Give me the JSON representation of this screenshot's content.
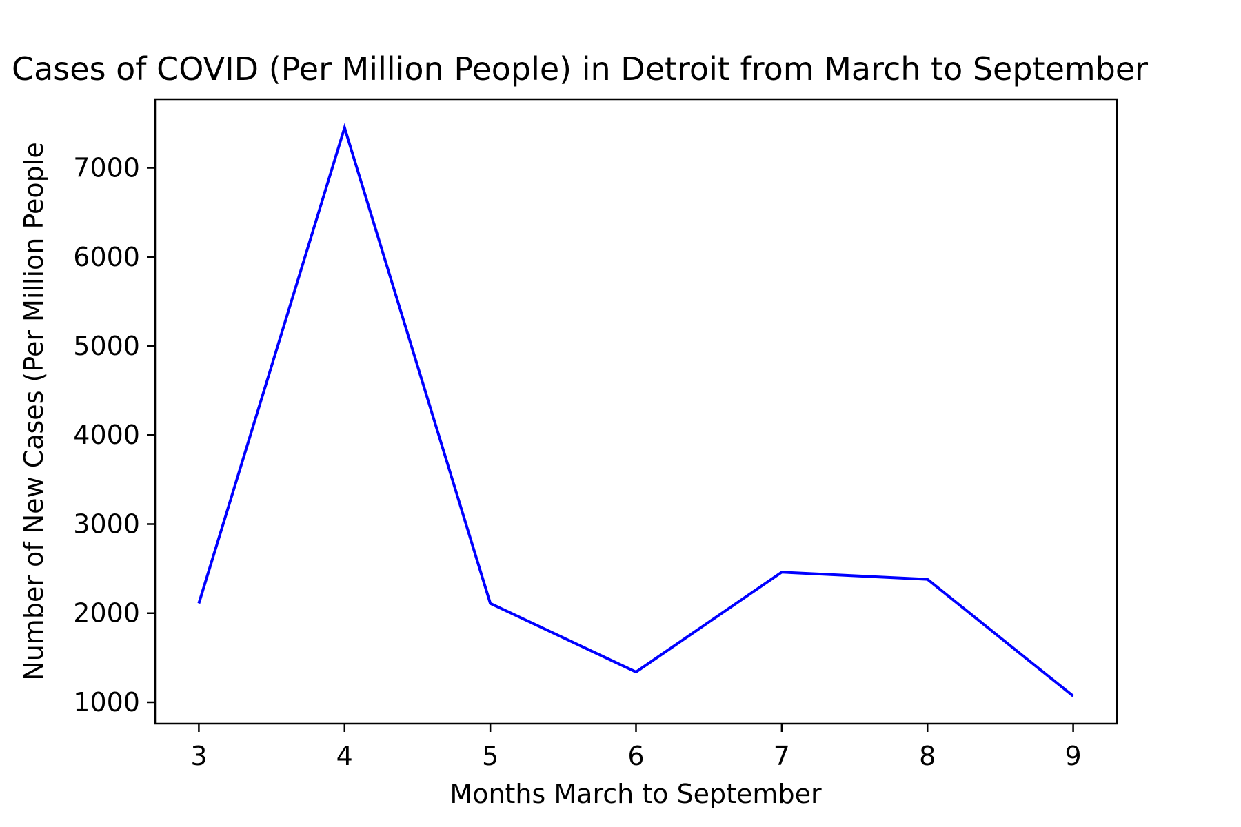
{
  "chart_data": {
    "type": "line",
    "title": "Cases of COVID (Per Million People) in Detroit from March to September",
    "xlabel": "Months March to September",
    "ylabel": "Number of New Cases (Per Million People",
    "x": [
      3,
      4,
      5,
      6,
      7,
      8,
      9
    ],
    "x_ticks": [
      "3",
      "4",
      "5",
      "6",
      "7",
      "8",
      "9"
    ],
    "y_ticks": [
      "1000",
      "2000",
      "3000",
      "4000",
      "5000",
      "6000",
      "7000"
    ],
    "xlim": [
      2.7,
      9.3
    ],
    "ylim": [
      760,
      7770
    ],
    "series": [
      {
        "color": "#0000ff",
        "values": [
          2110,
          7450,
          2110,
          1340,
          2460,
          2380,
          1070
        ]
      }
    ],
    "grid": false,
    "legend": "none"
  }
}
